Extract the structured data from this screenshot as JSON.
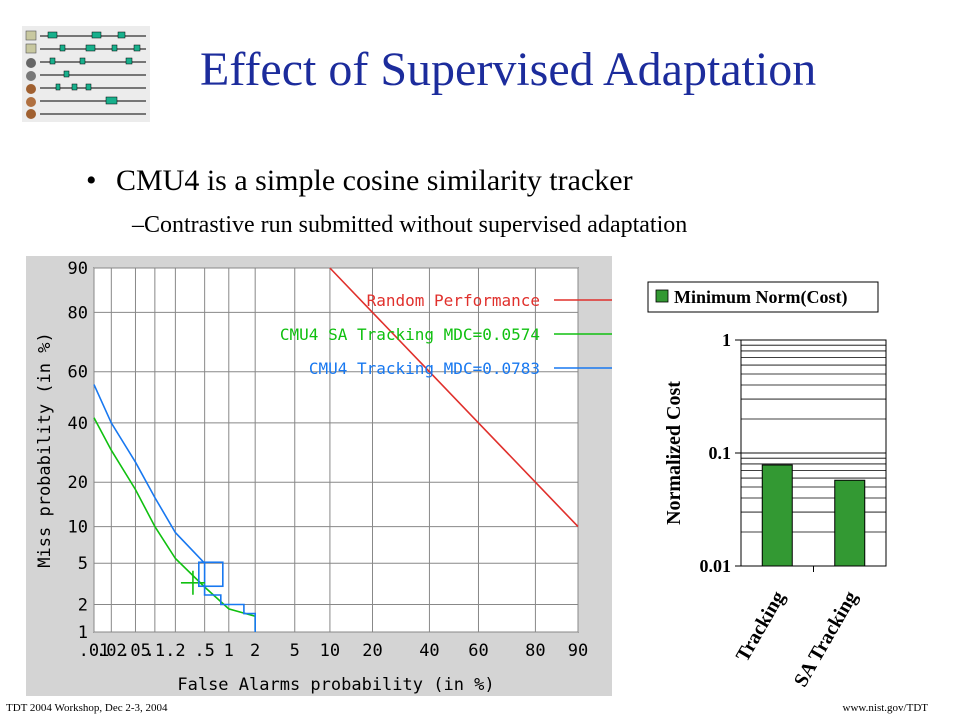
{
  "slide": {
    "title": "Effect of Supervised Adaptation",
    "bullet": "CMU4 is a simple cosine similarity tracker",
    "sub_bullet": "–Contrastive run submitted without supervised adaptation",
    "footer_left": "TDT 2004 Workshop, Dec 2-3, 2004",
    "footer_right": "www.nist.gov/TDT"
  },
  "colors": {
    "title": "#1c2c9c",
    "plot_bg": "#d4d4d4",
    "random": "#e0302c",
    "sa": "#10c010",
    "tracking": "#1878f0",
    "bar_fill": "#339933"
  },
  "chart_data": [
    {
      "type": "line",
      "title": "",
      "xlabel": "False Alarms probability (in %)",
      "ylabel": "Miss probability (in %)",
      "x_ticks": [
        ".01",
        ".02",
        ".05",
        ".1",
        ".2",
        ".5",
        "1",
        "2",
        "5",
        "10",
        "20",
        "40",
        "60",
        "80",
        "90"
      ],
      "y_ticks": [
        "1",
        "2",
        "5",
        "10",
        "20",
        "40",
        "60",
        "80",
        "90"
      ],
      "grid": true,
      "legend_position": "top-right",
      "series": [
        {
          "name": "Random Performance",
          "color": "#e0302c",
          "x": [
            10,
            20,
            40,
            60,
            80,
            90
          ],
          "y": [
            90,
            80,
            60,
            40,
            20,
            10
          ]
        },
        {
          "name": "CMU4 SA Tracking MDC=0.0574",
          "color": "#10c010",
          "x": [
            0.01,
            0.02,
            0.05,
            0.1,
            0.2,
            0.5,
            1,
            2,
            2
          ],
          "y": [
            42,
            30,
            18,
            10,
            5.5,
            3,
            1.8,
            1.5,
            1.05
          ]
        },
        {
          "name": "CMU4 Tracking MDC=0.0783",
          "color": "#1878f0",
          "x": [
            0.01,
            0.02,
            0.05,
            0.1,
            0.2,
            0.5,
            0.5,
            0.8,
            0.8,
            1.5,
            1.5,
            2,
            2
          ],
          "y": [
            55,
            40,
            26,
            16,
            9,
            5,
            2.5,
            2.5,
            2,
            2,
            1.6,
            1.6,
            1.0
          ]
        }
      ],
      "mdc_points": [
        {
          "series": "CMU4 SA Tracking MDC=0.0574",
          "x": 0.35,
          "y": 3.3,
          "marker": "cross"
        },
        {
          "series": "CMU4 Tracking MDC=0.0783",
          "x": 0.6,
          "y": 5,
          "marker": "box"
        }
      ]
    },
    {
      "type": "bar",
      "legend": "Minimum Norm(Cost)",
      "ylabel": "Normalized Cost",
      "categories": [
        "Tracking",
        "SA Tracking"
      ],
      "values": [
        0.0783,
        0.0574
      ],
      "y_ticks": [
        "0.01",
        "0.1",
        "1"
      ],
      "ylim": [
        0.01,
        1
      ],
      "log_scale": true
    }
  ]
}
